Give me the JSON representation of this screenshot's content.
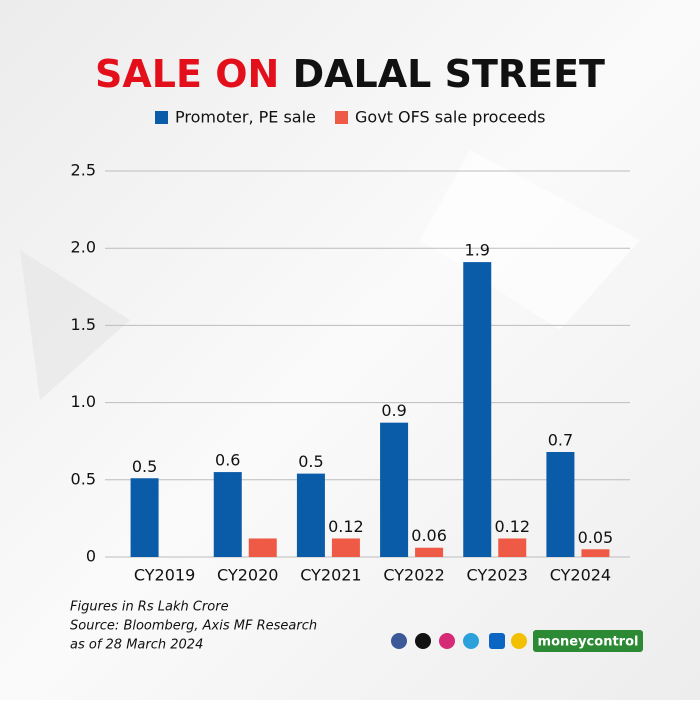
{
  "chart_data": {
    "type": "bar",
    "title": [
      "SALE ON",
      "DALAL STREET"
    ],
    "categories": [
      "CY2019",
      "CY2020",
      "CY2021",
      "CY2022",
      "CY2023",
      "CY2024"
    ],
    "series": [
      {
        "name": "Promoter, PE sale",
        "color": "#0a5ba8",
        "values": [
          0.51,
          0.55,
          0.54,
          0.87,
          1.91,
          0.68
        ],
        "value_labels": [
          "0.5",
          "0.6",
          "0.5",
          "0.9",
          "1.9",
          "0.7"
        ]
      },
      {
        "name": "Govt OFS sale proceeds",
        "color": "#ee5a45",
        "values": [
          null,
          0.12,
          0.12,
          0.06,
          0.12,
          0.05
        ],
        "value_labels": [
          null,
          null,
          "0.12",
          "0.06",
          "0.12",
          "0.05"
        ]
      }
    ],
    "ylim": [
      0,
      2.5
    ],
    "yticks": [
      0,
      0.5,
      {
        "value": 1,
        "label": "1.0"
      },
      1.5,
      {
        "value": 2,
        "label": "2.0"
      },
      2.5
    ],
    "grid": true,
    "notes": [
      "Figures in Rs Lakh Crore",
      "Source: Bloomberg, Axis MF Research",
      "as of 28 March 2024"
    ],
    "brand": "moneycontrol"
  }
}
